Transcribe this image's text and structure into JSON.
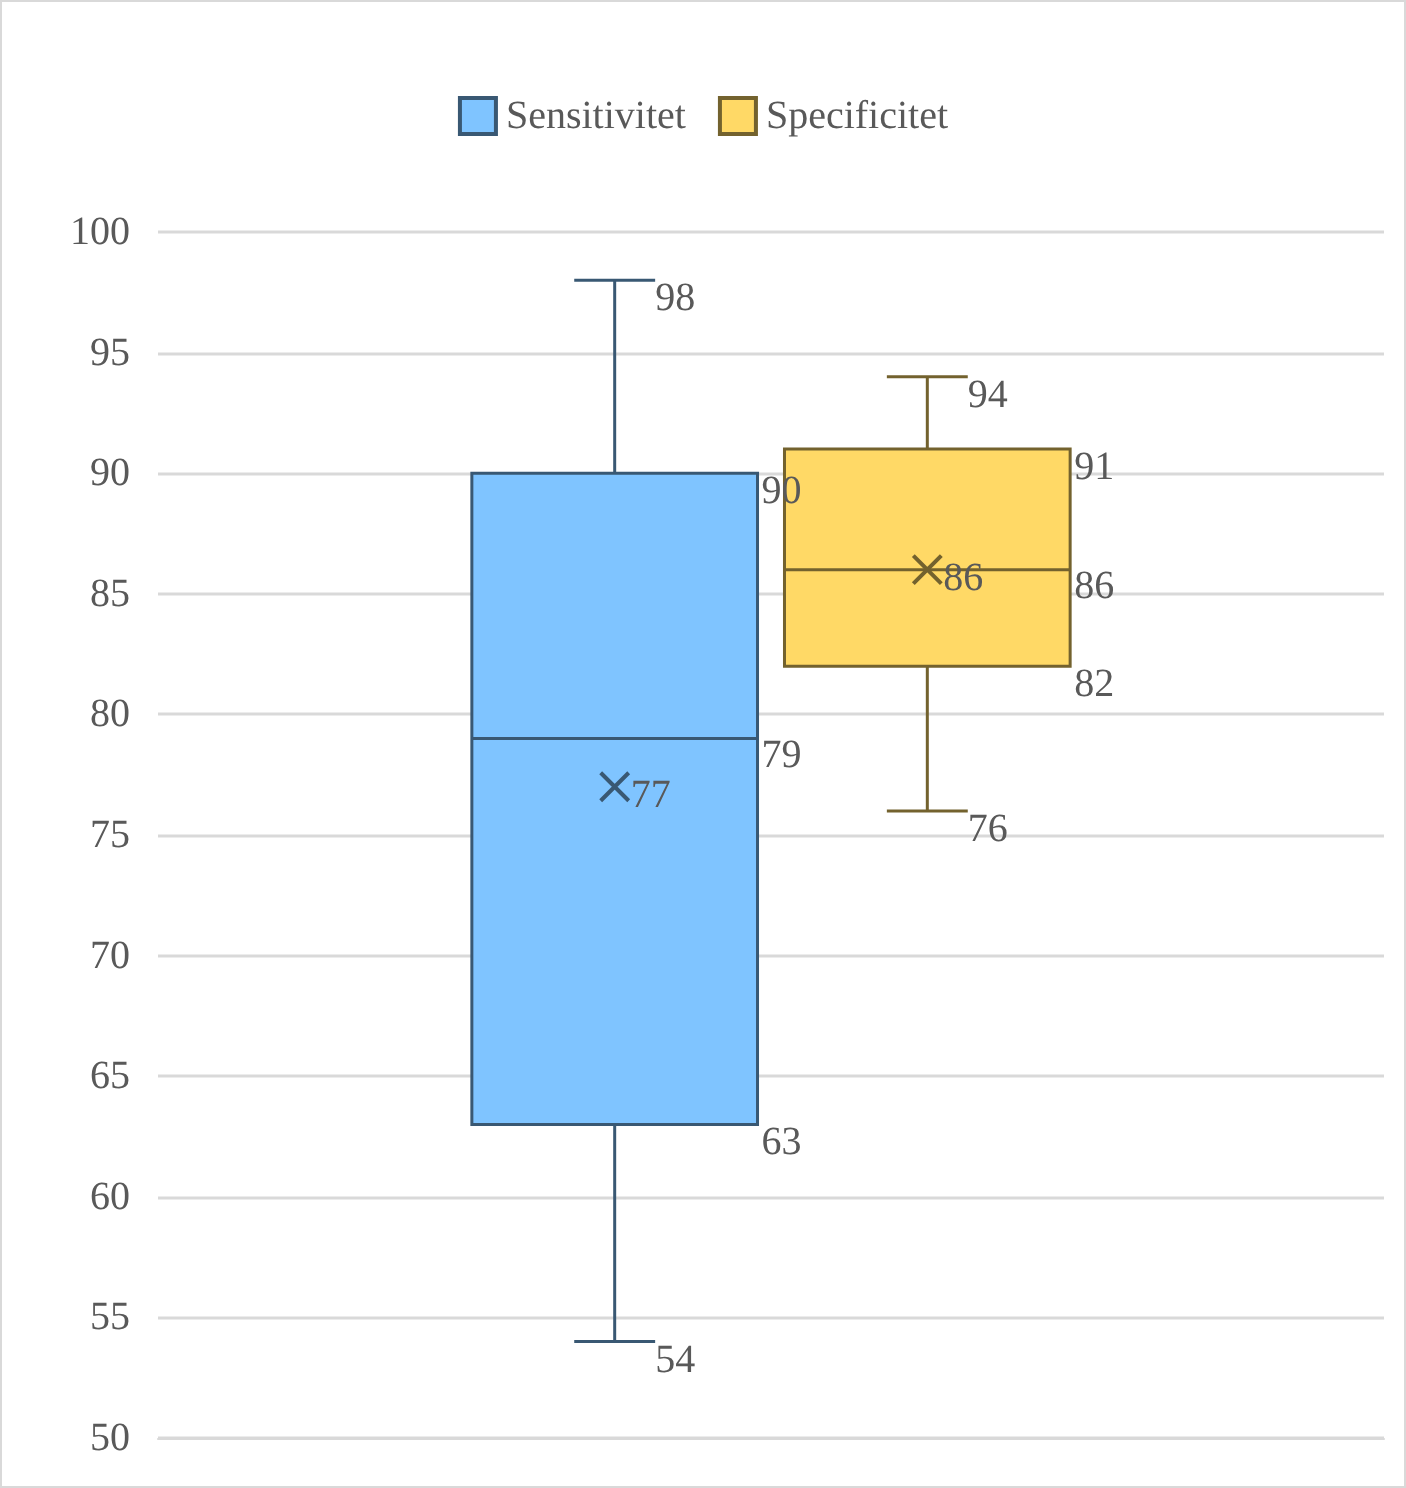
{
  "chart_data": {
    "type": "box",
    "categories": [
      null
    ],
    "series": [
      {
        "name": "Sensitivitet",
        "color": "#7fc4ff",
        "boxes": [
          {
            "low": 54,
            "q1": 63,
            "median": 79,
            "q3": 90,
            "high": 98,
            "mean": 77
          }
        ]
      },
      {
        "name": "Specificitet",
        "color": "#ffd966",
        "boxes": [
          {
            "low": 76,
            "q1": 82,
            "median": 86,
            "q3": 91,
            "high": 94,
            "mean": 86
          }
        ]
      }
    ],
    "annotations": [
      "98",
      "90",
      "79",
      "63",
      "54",
      "77",
      "94",
      "91",
      "86",
      "82",
      "76",
      "86"
    ],
    "ylim": [
      50,
      100
    ],
    "yticks": [
      50,
      55,
      60,
      65,
      70,
      75,
      80,
      85,
      90,
      95,
      100
    ],
    "grid": "y",
    "legend": "top",
    "marker": "cross"
  }
}
